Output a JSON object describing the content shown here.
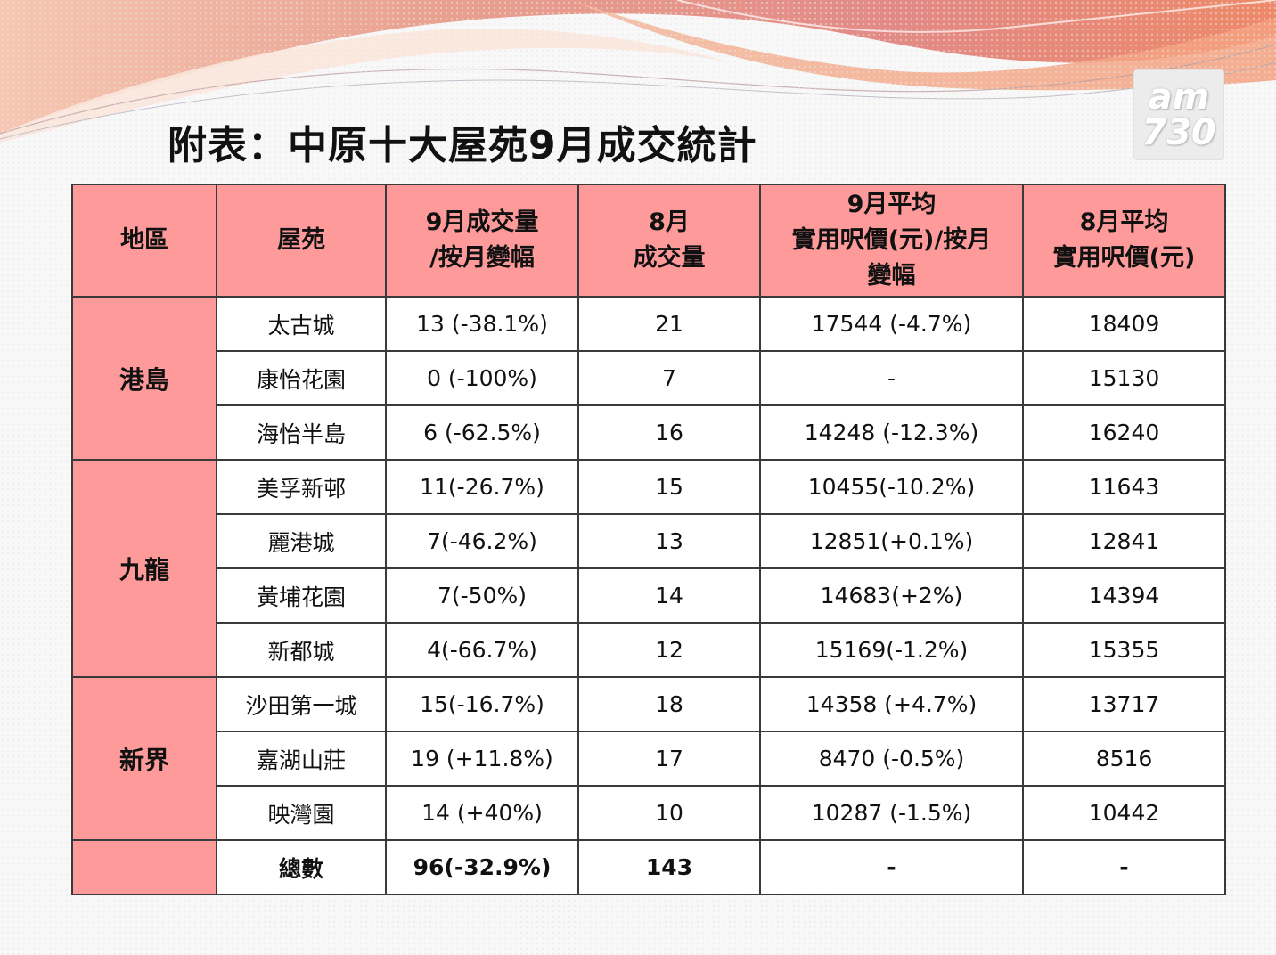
{
  "title": "附表：中原十大屋苑9月成交統計",
  "logo": {
    "line1": "am",
    "line2": "730"
  },
  "colors": {
    "header_bg": "#ff9a9a",
    "region_bg": "#ff9a9a",
    "border": "#3a3a3a"
  },
  "table": {
    "headers": [
      "地區",
      "屋苑",
      "9月成交量\n/按月變幅",
      "8月\n成交量",
      "9月平均\n實用呎價(元)/按月\n變幅",
      "8月平均\n實用呎價(元)"
    ],
    "regions": [
      "港島",
      "九龍",
      "新界",
      ""
    ],
    "rows": [
      [
        "太古城",
        "13 (-38.1%)",
        "21",
        "17544 (-4.7%)",
        "18409"
      ],
      [
        "康怡花園",
        "0 (-100%)",
        "7",
        "-",
        "15130"
      ],
      [
        "海怡半島",
        "6 (-62.5%)",
        "16",
        "14248 (-12.3%)",
        "16240"
      ],
      [
        "美孚新邨",
        "11(-26.7%)",
        "15",
        "10455(-10.2%)",
        "11643"
      ],
      [
        "麗港城",
        "7(-46.2%)",
        "13",
        "12851(+0.1%)",
        "12841"
      ],
      [
        "黃埔花園",
        "7(-50%)",
        "14",
        "14683(+2%)",
        "14394"
      ],
      [
        "新都城",
        "4(-66.7%)",
        "12",
        "15169(-1.2%)",
        "15355"
      ],
      [
        "沙田第一城",
        "15(-16.7%)",
        "18",
        "14358 (+4.7%)",
        "13717"
      ],
      [
        "嘉湖山莊",
        "19 (+11.8%)",
        "17",
        "8470 (-0.5%)",
        "8516"
      ],
      [
        "映灣園",
        "14 (+40%)",
        "10",
        "10287 (-1.5%)",
        "10442"
      ]
    ],
    "total": [
      "總數",
      "96(-32.9%)",
      "143",
      "-",
      "-"
    ]
  }
}
